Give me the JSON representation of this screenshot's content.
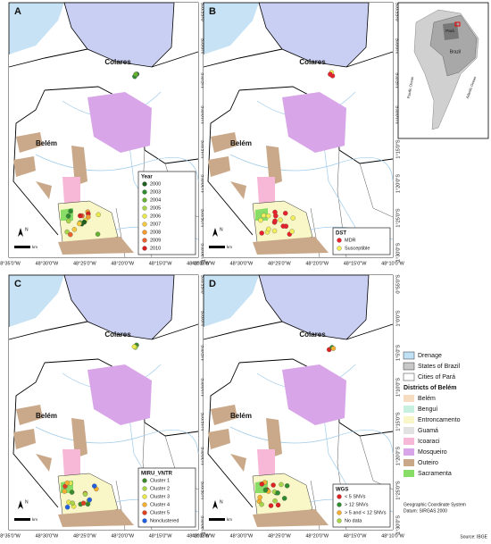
{
  "panels": [
    {
      "letter": "A",
      "labels": [
        "Colares",
        "Belém"
      ],
      "legend": {
        "title": "Year",
        "items": [
          {
            "label": "2000",
            "color": "#1f5e1f"
          },
          {
            "label": "2003",
            "color": "#2e8b2e"
          },
          {
            "label": "2004",
            "color": "#66b032"
          },
          {
            "label": "2005",
            "color": "#a8d44a"
          },
          {
            "label": "2006",
            "color": "#e8e84a"
          },
          {
            "label": "2007",
            "color": "#f5c842"
          },
          {
            "label": "2008",
            "color": "#f29a2e"
          },
          {
            "label": "2009",
            "color": "#e8602a"
          },
          {
            "label": "2010",
            "color": "#d62020"
          }
        ]
      }
    },
    {
      "letter": "B",
      "labels": [
        "Colares",
        "Belém"
      ],
      "legend": {
        "title": "DST",
        "items": [
          {
            "label": "MDR",
            "color": "#e8202a"
          },
          {
            "label": "Susceptible",
            "color": "#f2ee5a"
          }
        ]
      }
    },
    {
      "letter": "C",
      "labels": [
        "Colares",
        "Belém"
      ],
      "legend": {
        "title": "MIRU_VNTR",
        "items": [
          {
            "label": "Cluster 1",
            "color": "#3a8a2a"
          },
          {
            "label": "Cluster 2",
            "color": "#a8d44a"
          },
          {
            "label": "Cluster 3",
            "color": "#e8e84a"
          },
          {
            "label": "Cluster 4",
            "color": "#f5b030"
          },
          {
            "label": "Cluster 5",
            "color": "#e04020"
          },
          {
            "label": "Nonclustered",
            "color": "#2060e0"
          }
        ]
      }
    },
    {
      "letter": "D",
      "labels": [
        "Colares",
        "Belém"
      ],
      "legend": {
        "title": "WGS",
        "items": [
          {
            "label": "< 5 SNVs",
            "color": "#e02020"
          },
          {
            "label": "> 12 SNVs",
            "color": "#2e8b2e"
          },
          {
            "label": "> 5 and < 12 SNVs",
            "color": "#f5b030"
          },
          {
            "label": "No data",
            "color": "#a8d44a"
          }
        ]
      }
    }
  ],
  "x_labels": [
    "48°35'0\"W",
    "48°30'0\"W",
    "48°25'0\"W",
    "48°20'0\"W",
    "48°15'0\"W",
    "48°10'0\"W"
  ],
  "y_labels": [
    "0°55'0\"S",
    "1°0'0\"S",
    "1°5'0\"S",
    "1°10'0\"S",
    "1°15'0\"S",
    "1°20'0\"S",
    "1°25'0\"S",
    "1°30'0\"S"
  ],
  "north": "N",
  "scale": "km",
  "inset": {
    "labels": [
      "Pará",
      "Brazil",
      "Pacific Ocean",
      "Atlantic Ocean"
    ]
  },
  "legend": {
    "layers": [
      {
        "label": "Drenage",
        "color": "#bfe0f5"
      },
      {
        "label": "States of Brazil",
        "color": "#c8c8c8"
      },
      {
        "label": "Cities of Pará",
        "color": "#ffffff"
      }
    ],
    "districts_title": "Districts of Belém",
    "districts": [
      {
        "label": "Belém",
        "color": "#f6dcc0"
      },
      {
        "label": "Benguí",
        "color": "#c8f0e0"
      },
      {
        "label": "Entroncamento",
        "color": "#f9f7c8"
      },
      {
        "label": "Guamá",
        "color": "#e2e2e2"
      },
      {
        "label": "Icoaraci",
        "color": "#f7b8d8"
      },
      {
        "label": "Mosqueiro",
        "color": "#d8a6e8"
      },
      {
        "label": "Outeiro",
        "color": "#c9a98a"
      },
      {
        "label": "Sacramenta",
        "color": "#88dd66"
      }
    ]
  },
  "footer": [
    "Geographic Coordinate System",
    "Datum: SIRGAS 2000"
  ],
  "source": "Source: IBGE"
}
